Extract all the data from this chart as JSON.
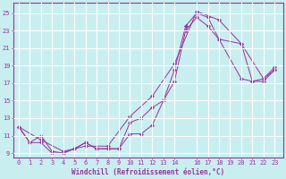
{
  "xlabel": "Windchill (Refroidissement éolien,°C)",
  "bg_color": "#c8eef0",
  "grid_color": "#ffffff",
  "line_color": "#993399",
  "ylim": [
    8.5,
    26.2
  ],
  "xlim": [
    -0.5,
    23.8
  ],
  "yticks": [
    9,
    11,
    13,
    15,
    17,
    19,
    21,
    23,
    25
  ],
  "xticks": [
    0,
    1,
    2,
    3,
    4,
    5,
    6,
    7,
    8,
    9,
    10,
    11,
    12,
    13,
    14,
    16,
    17,
    18,
    19,
    20,
    21,
    22,
    23
  ],
  "line1_x": [
    0,
    1,
    2,
    3,
    4,
    5,
    6,
    7,
    8,
    9,
    10,
    11,
    12,
    13,
    14,
    15,
    16,
    17,
    18,
    20,
    21,
    22,
    23
  ],
  "line1_y": [
    12.0,
    10.2,
    11.0,
    9.2,
    9.0,
    9.5,
    10.2,
    9.5,
    9.5,
    9.5,
    11.2,
    11.2,
    12.2,
    15.0,
    18.5,
    23.5,
    25.0,
    24.5,
    22.0,
    17.5,
    17.2,
    17.5,
    18.5
  ],
  "line2_x": [
    0,
    1,
    2,
    3,
    4,
    5,
    6,
    7,
    8,
    9,
    10,
    11,
    12,
    13,
    14,
    15,
    16,
    17,
    18,
    20,
    21,
    22,
    23
  ],
  "line2_y": [
    12.0,
    10.2,
    10.2,
    9.0,
    9.0,
    9.5,
    10.2,
    9.5,
    9.5,
    9.5,
    12.5,
    13.0,
    14.2,
    15.0,
    17.2,
    23.0,
    24.5,
    23.5,
    22.0,
    21.5,
    17.2,
    17.2,
    18.5
  ],
  "line3_x": [
    0,
    2,
    4,
    6,
    8,
    10,
    12,
    14,
    16,
    18,
    20,
    22,
    23
  ],
  "line3_y": [
    12.0,
    10.5,
    9.2,
    9.8,
    9.8,
    13.2,
    15.5,
    19.2,
    25.2,
    24.2,
    21.5,
    17.5,
    18.8
  ]
}
